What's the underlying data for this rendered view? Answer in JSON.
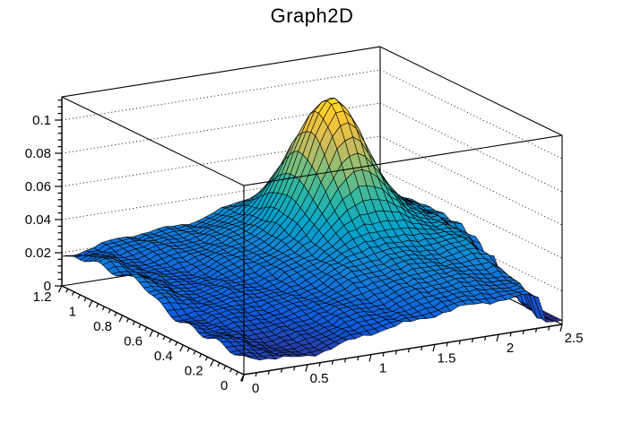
{
  "chart_data": {
    "type": "surface",
    "title": "Graph2D",
    "x_axis": {
      "min": 0,
      "max": 2.5,
      "major_ticks": [
        0,
        0.5,
        1,
        1.5,
        2,
        2.5
      ],
      "tick_labels": [
        "0",
        "0.5",
        "1",
        "1.5",
        "2",
        "2.5"
      ],
      "minor_step": 0.1
    },
    "y_axis": {
      "min": 0,
      "max": 1.2,
      "major_ticks": [
        0,
        0.2,
        0.4,
        0.6,
        0.8,
        1,
        1.2
      ],
      "tick_labels": [
        "0",
        "0.2",
        "0.4",
        "0.6",
        "0.8",
        "1",
        "1.2"
      ],
      "minor_step": 0.04
    },
    "z_axis": {
      "min": 0,
      "max": 0.114,
      "major_ticks": [
        0,
        0.02,
        0.04,
        0.06,
        0.08,
        0.1
      ],
      "tick_labels": [
        "0",
        "0.02",
        "0.04",
        "0.06",
        "0.08",
        "0.1"
      ],
      "minor_step": 0.004
    },
    "grid_nx": 40,
    "grid_ny": 40,
    "grid_on": true,
    "legend": "none",
    "palette": [
      "#352A87",
      "#0F5CDD",
      "#1481D6",
      "#06A4CA",
      "#2EB7A4",
      "#87BF77",
      "#D1BB59",
      "#FEC832",
      "#F9FB0E"
    ],
    "palette_zmax": 0.114,
    "mesh_color": "#000000",
    "wall_color": "#ffffff",
    "frame_color": "#000000",
    "surface_model": {
      "comment": "approximate z(x,y) read off the plot: sharp peak z=0.105 at (1.7,0.88) on a green shoulder, teal plateau ~0.03-0.04 on the right, jagged drop to ~0.005 at far right edge for y<0.6, low bowl ~0.006 at front (0.45,0), bumpy ~0.02 ridge along the left edge",
      "base": 0.013,
      "back_tilt": 0.005,
      "clamp_min": 0.0025,
      "gaussians": [
        [
          -0.0075,
          0.45,
          0.38,
          0.0,
          0.25
        ],
        [
          0.066,
          1.72,
          0.22,
          0.88,
          0.155
        ],
        [
          0.022,
          1.75,
          0.55,
          0.72,
          0.42
        ],
        [
          0.01,
          2.35,
          0.4,
          0.55,
          0.5
        ],
        [
          -0.004,
          2.05,
          0.18,
          0.45,
          0.25
        ],
        [
          0.009,
          0.02,
          0.13,
          0.7,
          0.11
        ],
        [
          0.007,
          0.06,
          0.11,
          1.0,
          0.09
        ],
        [
          0.005,
          0.85,
          0.45,
          1.15,
          0.22
        ]
      ],
      "cliff": {
        "amp": 0.026,
        "x_start": 2.28,
        "x_span": 0.15,
        "y_center": 0.05,
        "y_sigma": 0.32
      },
      "ripples": [
        [
          0.0013,
          7.3,
          1.1,
          9.1,
          0.4
        ],
        [
          0.0011,
          13.7,
          3.0,
          15.3,
          2.0
        ],
        [
          0.0008,
          41.0,
          0.7,
          37.0,
          2.3
        ]
      ],
      "edge_jags": [
        [
          0.004,
          2.5,
          0.1,
          57,
          1.0,
          0.2,
          0.35
        ],
        [
          0.002,
          0.0,
          0.07,
          33,
          2.0,
          0.6,
          0.6
        ]
      ]
    },
    "projection": {
      "origin": [
        272,
        418
      ],
      "x_unit": [
        142,
        -22.4
      ],
      "y_unit": [
        -169.2,
        -82.5
      ],
      "z_unit": [
        0,
        -1850
      ],
      "depth_y_weight": 0.839
    }
  }
}
